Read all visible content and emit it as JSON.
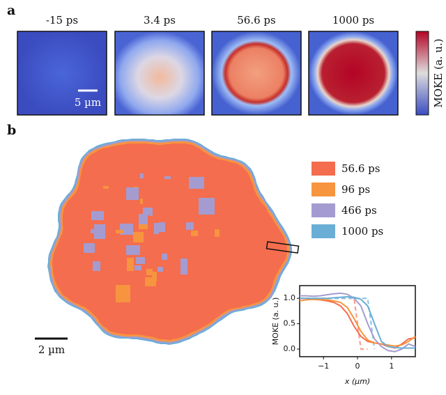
{
  "panels": {
    "a": {
      "label": "a",
      "images": [
        {
          "label": "-15 ps"
        },
        {
          "label": "3.4 ps"
        },
        {
          "label": "56.6 ps"
        },
        {
          "label": "1000 ps"
        }
      ],
      "scale_bar": "5 µm",
      "colorbar_label": "MOKE (a. u.)"
    },
    "b": {
      "label": "b",
      "scale_bar": "2 µm"
    }
  },
  "chart_data": {
    "type": "line",
    "xlabel": "x (µm)",
    "ylabel": "MOKE (a. u.)",
    "x": [
      -1.7,
      -1.5,
      -1.3,
      -1.1,
      -0.9,
      -0.7,
      -0.5,
      -0.3,
      -0.1,
      0.1,
      0.3,
      0.5,
      0.7,
      0.9,
      1.1,
      1.3,
      1.5,
      1.7
    ],
    "series": [
      {
        "name": "56.6 ps",
        "color": "#f46d4e",
        "values": [
          1.0,
          1.0,
          0.98,
          0.97,
          0.95,
          0.92,
          0.85,
          0.7,
          0.45,
          0.25,
          0.15,
          0.12,
          0.1,
          0.05,
          0.02,
          0.1,
          0.2,
          0.22
        ]
      },
      {
        "name": "96 ps",
        "color": "#f7943f",
        "values": [
          0.95,
          0.97,
          0.98,
          0.98,
          0.97,
          0.95,
          0.92,
          0.82,
          0.6,
          0.35,
          0.18,
          0.12,
          0.1,
          0.08,
          0.06,
          0.08,
          0.15,
          0.25
        ]
      },
      {
        "name": "466 ps",
        "color": "#a49cd0",
        "values": [
          1.05,
          1.05,
          1.04,
          1.05,
          1.07,
          1.09,
          1.1,
          1.08,
          1.0,
          0.85,
          0.5,
          0.2,
          0.05,
          -0.03,
          -0.05,
          0.0,
          0.1,
          0.05
        ]
      },
      {
        "name": "1000 ps",
        "color": "#6aaed6",
        "values": [
          1.0,
          1.0,
          1.0,
          1.0,
          1.0,
          1.01,
          1.02,
          1.03,
          1.02,
          0.98,
          0.85,
          0.5,
          0.15,
          0.05,
          0.03,
          0.02,
          0.02,
          0.02
        ]
      }
    ],
    "fits": [
      {
        "color": "#f79a86",
        "values": [
          1.0,
          1.0,
          1.0,
          1.0,
          1.0,
          1.0,
          1.0,
          1.0,
          1.0,
          0.0,
          0.0,
          null,
          null,
          null,
          null,
          null,
          null,
          null
        ]
      },
      {
        "color": "#8cc0e2",
        "values": [
          1.0,
          1.0,
          1.0,
          1.0,
          1.0,
          1.0,
          1.0,
          1.0,
          1.0,
          1.0,
          1.0,
          0.0,
          null,
          null,
          null,
          null,
          null,
          null
        ]
      }
    ],
    "xlim": [
      -1.7,
      1.7
    ],
    "ylim": [
      -0.15,
      1.25
    ],
    "xticks": [
      {
        "value": -1,
        "label": "−1"
      },
      0,
      1
    ],
    "yticks": [
      {
        "value": 0.0,
        "label": "0.0"
      },
      0.5,
      {
        "value": 1.0,
        "label": "1.0"
      }
    ]
  }
}
